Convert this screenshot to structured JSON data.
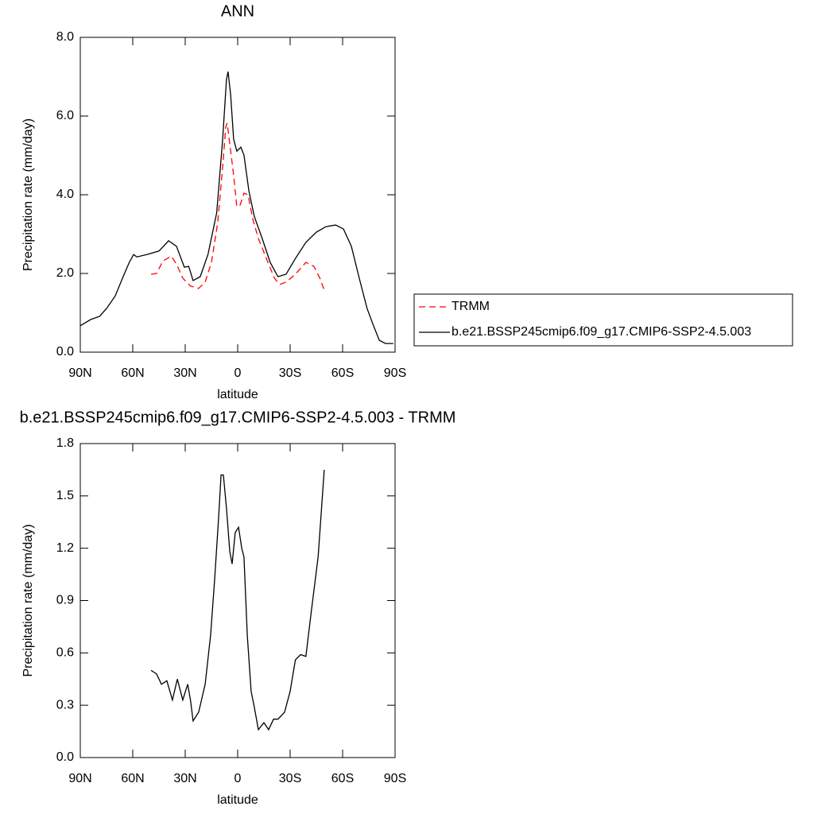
{
  "chart_data": [
    {
      "type": "line",
      "title": "ANN",
      "xlabel": "latitude",
      "ylabel": "Precipitation rate (mm/day)",
      "xlim": [
        90,
        -90
      ],
      "xticks": [
        {
          "value": 90,
          "label": "90N"
        },
        {
          "value": 60,
          "label": "60N"
        },
        {
          "value": 30,
          "label": "30N"
        },
        0,
        {
          "value": -30,
          "label": "30S"
        },
        {
          "value": -60,
          "label": "60S"
        },
        {
          "value": -90,
          "label": "90S"
        }
      ],
      "ylim": [
        0,
        8
      ],
      "yticks": [
        {
          "value": 0,
          "label": "0.0"
        },
        {
          "value": 2,
          "label": "2.0"
        },
        {
          "value": 4,
          "label": "4.0"
        },
        {
          "value": 6,
          "label": "6.0"
        },
        {
          "value": 8,
          "label": "8.0"
        }
      ],
      "legend": "right",
      "series": [
        {
          "name": "TRMM",
          "color": "#ff0000",
          "line_style": "dashed",
          "x": [
            49.5,
            46.4,
            42.7,
            38,
            35,
            31.4,
            27,
            22.3,
            18.6,
            15,
            11.4,
            8.6,
            6.8,
            6,
            4,
            2.3,
            0.5,
            -1.4,
            -3.6,
            -5.9,
            -8.6,
            -11.8,
            -16.4,
            -21,
            -24,
            -27.7,
            -33,
            -39,
            -43.6,
            -47,
            -49.5
          ],
          "values": [
            1.98,
            2.0,
            2.32,
            2.44,
            2.24,
            1.88,
            1.68,
            1.62,
            1.78,
            2.28,
            3.29,
            4.71,
            5.72,
            5.82,
            5.11,
            4.5,
            3.7,
            3.74,
            4.04,
            4.0,
            3.39,
            2.89,
            2.38,
            1.88,
            1.72,
            1.78,
            1.98,
            2.28,
            2.18,
            1.88,
            1.58
          ]
        },
        {
          "name": "b.e21.BSSP245cmip6.f09_g17.CMIP6-SSP2-4.5.003",
          "color": "#000000",
          "line_style": "solid",
          "x": [
            90,
            84,
            79,
            75,
            70,
            65.5,
            62,
            59.5,
            57.7,
            52,
            45,
            39.5,
            35,
            30.5,
            28,
            25.5,
            21.4,
            17,
            12,
            8.6,
            6.4,
            5.5,
            4,
            2.3,
            0.5,
            -1.8,
            -3.6,
            -6.4,
            -9.5,
            -14,
            -18.6,
            -23,
            -27.7,
            -33,
            -39,
            -45,
            -50.5,
            -56,
            -60.5,
            -65,
            -69.5,
            -74,
            -77.7,
            -81,
            -84.5,
            -89
          ],
          "values": [
            0.67,
            0.83,
            0.91,
            1.11,
            1.43,
            1.92,
            2.28,
            2.48,
            2.42,
            2.48,
            2.57,
            2.83,
            2.69,
            2.16,
            2.18,
            1.82,
            1.92,
            2.48,
            3.54,
            5.41,
            6.93,
            7.13,
            6.53,
            5.41,
            5.11,
            5.21,
            5.01,
            4.1,
            3.45,
            2.89,
            2.28,
            1.92,
            1.98,
            2.38,
            2.79,
            3.05,
            3.19,
            3.23,
            3.13,
            2.69,
            1.88,
            1.11,
            0.67,
            0.3,
            0.22,
            0.22
          ]
        }
      ]
    },
    {
      "type": "line",
      "title": "b.e21.BSSP245cmip6.f09_g17.CMIP6-SSP2-4.5.003 - TRMM",
      "xlabel": "latitude",
      "ylabel": "Precipitation rate (mm/day)",
      "xlim": [
        90,
        -90
      ],
      "xticks": [
        {
          "value": 90,
          "label": "90N"
        },
        {
          "value": 60,
          "label": "60N"
        },
        {
          "value": 30,
          "label": "30N"
        },
        0,
        {
          "value": -30,
          "label": "30S"
        },
        {
          "value": -60,
          "label": "60S"
        },
        {
          "value": -90,
          "label": "90S"
        }
      ],
      "ylim": [
        0,
        1.8
      ],
      "yticks": [
        {
          "value": 0,
          "label": "0.0"
        },
        0.3,
        0.6,
        0.9,
        1.2,
        1.5,
        1.8
      ],
      "series": [
        {
          "color": "#000000",
          "line_style": "solid",
          "x": [
            49.5,
            48,
            46.4,
            43.6,
            40.5,
            37.3,
            34.5,
            31.4,
            28.6,
            27,
            25.5,
            22.3,
            18.6,
            15.5,
            13.2,
            11,
            9.5,
            8.2,
            6.4,
            4.5,
            3.2,
            1.4,
            -0.5,
            -2.3,
            -3.6,
            -5.5,
            -7.7,
            -9.5,
            -11.8,
            -15,
            -17.7,
            -20.5,
            -23,
            -26.8,
            -30,
            -33,
            -36,
            -39,
            -42,
            -46,
            -49.5
          ],
          "values": [
            0.5,
            0.49,
            0.48,
            0.42,
            0.44,
            0.33,
            0.45,
            0.33,
            0.42,
            0.33,
            0.21,
            0.26,
            0.42,
            0.7,
            1.02,
            1.36,
            1.62,
            1.62,
            1.43,
            1.18,
            1.11,
            1.29,
            1.32,
            1.2,
            1.15,
            0.7,
            0.38,
            0.29,
            0.16,
            0.2,
            0.16,
            0.22,
            0.22,
            0.26,
            0.38,
            0.56,
            0.59,
            0.58,
            0.83,
            1.15,
            1.65
          ]
        }
      ]
    }
  ]
}
